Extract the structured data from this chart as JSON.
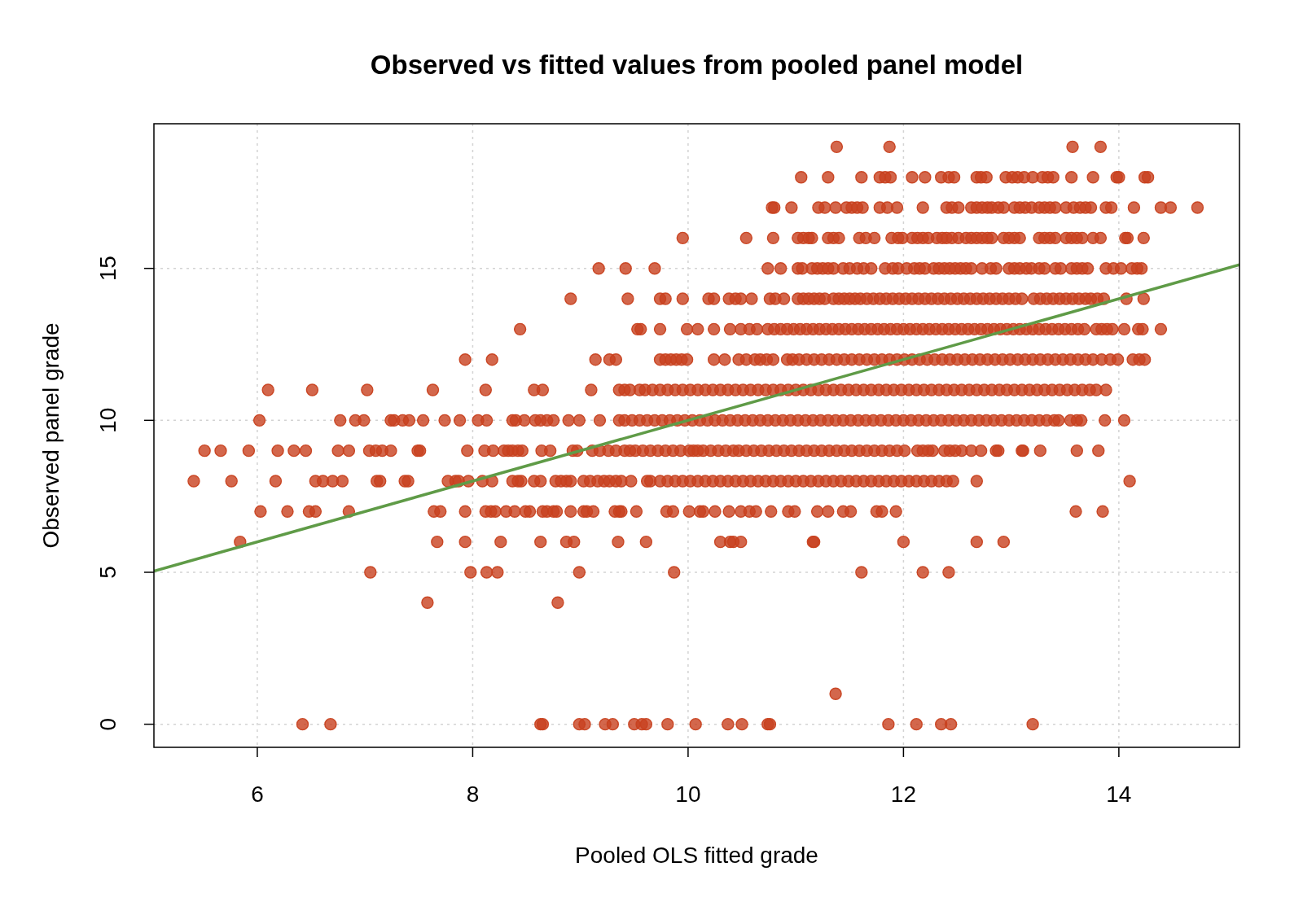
{
  "chart_data": {
    "type": "scatter",
    "title": "Observed vs fitted values from pooled panel model",
    "xlabel": "Pooled OLS fitted grade",
    "ylabel": "Observed panel grade",
    "xlim": [
      5.04,
      15.12
    ],
    "ylim": [
      -0.76,
      19.76
    ],
    "xticks": [
      6,
      8,
      10,
      12,
      14
    ],
    "yticks": [
      0,
      5,
      10,
      15
    ],
    "grid": true,
    "marker": "circle",
    "series": [
      {
        "color": "#c8411f",
        "x": [
          11.38,
          11.87,
          13.57,
          13.83,
          11.05,
          11.3,
          11.61,
          11.78,
          11.83,
          11.88,
          12.08,
          12.2,
          12.35,
          12.42,
          12.47,
          12.68,
          12.72,
          12.77,
          12.95,
          13.01,
          13.06,
          13.12,
          13.2,
          13.29,
          13.34,
          13.39,
          13.56,
          13.76,
          13.98,
          14.0,
          14.24,
          14.27,
          10.78,
          10.8,
          10.96,
          11.21,
          11.27,
          11.37,
          11.47,
          11.52,
          11.57,
          11.62,
          11.78,
          11.85,
          11.94,
          12.18,
          12.4,
          12.45,
          12.51,
          12.63,
          12.68,
          12.73,
          12.78,
          12.82,
          12.88,
          12.93,
          13.03,
          13.08,
          13.13,
          13.19,
          13.26,
          13.31,
          13.36,
          13.41,
          13.51,
          13.58,
          13.64,
          13.69,
          13.74,
          13.88,
          13.93,
          14.14,
          14.39,
          14.48,
          14.73,
          9.95,
          10.54,
          10.79,
          11.02,
          11.07,
          11.12,
          11.15,
          11.3,
          11.35,
          11.4,
          11.59,
          11.65,
          11.73,
          11.89,
          11.95,
          11.99,
          12.08,
          12.13,
          12.18,
          12.23,
          12.31,
          12.36,
          12.4,
          12.45,
          12.51,
          12.58,
          12.63,
          12.68,
          12.73,
          12.78,
          12.82,
          12.93,
          12.98,
          13.03,
          13.08,
          13.26,
          13.31,
          13.36,
          13.41,
          13.51,
          13.56,
          13.61,
          13.66,
          13.76,
          13.83,
          14.06,
          14.08,
          14.23,
          9.17,
          9.42,
          9.69,
          10.74,
          10.86,
          11.02,
          11.06,
          11.15,
          11.2,
          11.25,
          11.3,
          11.35,
          11.44,
          11.5,
          11.57,
          11.63,
          11.7,
          11.83,
          11.9,
          11.95,
          12.03,
          12.1,
          12.15,
          12.2,
          12.28,
          12.33,
          12.38,
          12.43,
          12.48,
          12.53,
          12.58,
          12.63,
          12.73,
          12.81,
          12.86,
          12.98,
          13.03,
          13.08,
          13.14,
          13.19,
          13.26,
          13.31,
          13.41,
          13.46,
          13.56,
          13.61,
          13.66,
          13.71,
          13.88,
          13.95,
          14.02,
          14.12,
          14.17,
          14.21,
          8.91,
          9.44,
          9.74,
          9.79,
          9.95,
          10.19,
          10.24,
          10.38,
          10.44,
          10.49,
          10.59,
          10.76,
          10.81,
          10.89,
          11.02,
          11.07,
          11.12,
          11.17,
          11.22,
          11.27,
          11.35,
          11.4,
          11.45,
          11.5,
          11.55,
          11.6,
          11.66,
          11.72,
          11.78,
          11.84,
          11.9,
          11.96,
          12.02,
          12.08,
          12.14,
          12.2,
          12.26,
          12.32,
          12.38,
          12.44,
          12.5,
          12.56,
          12.62,
          12.68,
          12.74,
          12.8,
          12.86,
          12.92,
          12.98,
          13.04,
          13.1,
          13.21,
          13.27,
          13.33,
          13.39,
          13.45,
          13.51,
          13.57,
          13.63,
          13.69,
          13.74,
          13.8,
          13.86,
          14.07,
          14.23,
          8.44,
          9.53,
          9.56,
          9.74,
          9.99,
          10.09,
          10.24,
          10.39,
          10.49,
          10.57,
          10.64,
          10.74,
          10.8,
          10.86,
          10.92,
          10.98,
          11.04,
          11.1,
          11.16,
          11.22,
          11.28,
          11.34,
          11.4,
          11.46,
          11.52,
          11.58,
          11.64,
          11.7,
          11.76,
          11.82,
          11.88,
          11.94,
          12.0,
          12.06,
          12.12,
          12.18,
          12.24,
          12.3,
          12.36,
          12.42,
          12.48,
          12.54,
          12.6,
          12.66,
          12.72,
          12.78,
          12.84,
          12.9,
          12.96,
          13.02,
          13.08,
          13.14,
          13.2,
          13.26,
          13.32,
          13.38,
          13.44,
          13.5,
          13.56,
          13.62,
          13.68,
          13.79,
          13.84,
          13.89,
          13.94,
          14.05,
          14.18,
          14.22,
          14.39,
          7.93,
          8.18,
          9.14,
          9.27,
          9.33,
          9.74,
          9.79,
          9.84,
          9.89,
          9.94,
          9.99,
          10.24,
          10.34,
          10.47,
          10.54,
          10.62,
          10.67,
          10.73,
          10.79,
          10.92,
          10.97,
          11.03,
          11.1,
          11.17,
          11.24,
          11.31,
          11.38,
          11.45,
          11.52,
          11.59,
          11.66,
          11.73,
          11.8,
          11.87,
          11.94,
          12.01,
          12.08,
          12.15,
          12.22,
          12.29,
          12.36,
          12.43,
          12.5,
          12.57,
          12.64,
          12.71,
          12.78,
          12.85,
          12.92,
          12.99,
          13.06,
          13.13,
          13.2,
          13.27,
          13.34,
          13.41,
          13.48,
          13.55,
          13.62,
          13.69,
          13.76,
          13.84,
          13.92,
          13.99,
          14.13,
          14.19,
          14.24,
          6.1,
          6.51,
          7.02,
          7.63,
          8.12,
          8.57,
          8.65,
          9.1,
          9.36,
          9.41,
          9.46,
          9.55,
          9.6,
          9.67,
          9.74,
          9.81,
          9.88,
          9.95,
          10.02,
          10.09,
          10.16,
          10.23,
          10.3,
          10.37,
          10.44,
          10.51,
          10.58,
          10.65,
          10.72,
          10.79,
          10.86,
          10.93,
          11.0,
          11.07,
          11.14,
          11.21,
          11.28,
          11.35,
          11.42,
          11.49,
          11.56,
          11.63,
          11.7,
          11.77,
          11.84,
          11.91,
          11.98,
          12.05,
          12.12,
          12.19,
          12.26,
          12.33,
          12.4,
          12.47,
          12.54,
          12.61,
          12.68,
          12.75,
          12.82,
          12.89,
          12.96,
          13.03,
          13.1,
          13.17,
          13.24,
          13.31,
          13.38,
          13.45,
          13.52,
          13.59,
          13.66,
          13.73,
          13.79,
          13.88,
          6.02,
          6.77,
          6.91,
          6.99,
          7.24,
          7.27,
          7.35,
          7.41,
          7.54,
          7.74,
          7.88,
          8.05,
          8.13,
          8.37,
          8.4,
          8.48,
          8.58,
          8.63,
          8.69,
          8.75,
          8.89,
          8.99,
          9.18,
          9.36,
          9.41,
          9.48,
          9.55,
          9.62,
          9.69,
          9.76,
          9.83,
          9.9,
          9.97,
          10.04,
          10.11,
          10.18,
          10.25,
          10.32,
          10.39,
          10.46,
          10.53,
          10.6,
          10.67,
          10.74,
          10.81,
          10.88,
          10.95,
          11.02,
          11.09,
          11.16,
          11.23,
          11.3,
          11.37,
          11.44,
          11.51,
          11.58,
          11.65,
          11.72,
          11.79,
          11.86,
          11.93,
          12.0,
          12.07,
          12.14,
          12.21,
          12.28,
          12.35,
          12.42,
          12.49,
          12.56,
          12.63,
          12.7,
          12.77,
          12.84,
          12.91,
          12.98,
          13.05,
          13.12,
          13.19,
          13.26,
          13.33,
          13.4,
          13.44,
          13.55,
          13.61,
          13.65,
          13.87,
          14.05,
          5.51,
          5.66,
          5.92,
          6.19,
          6.34,
          6.45,
          6.75,
          6.85,
          7.04,
          7.1,
          7.16,
          7.24,
          7.49,
          7.51,
          7.95,
          8.11,
          8.19,
          8.29,
          8.33,
          8.37,
          8.42,
          8.46,
          8.64,
          8.72,
          8.93,
          8.97,
          9.11,
          9.18,
          9.26,
          9.33,
          9.41,
          9.46,
          9.51,
          9.58,
          9.65,
          9.72,
          9.79,
          9.86,
          9.93,
          10.01,
          10.05,
          10.09,
          10.14,
          10.21,
          10.28,
          10.35,
          10.42,
          10.47,
          10.54,
          10.61,
          10.68,
          10.75,
          10.82,
          10.89,
          10.96,
          11.03,
          11.1,
          11.17,
          11.24,
          11.31,
          11.38,
          11.45,
          11.52,
          11.59,
          11.66,
          11.73,
          11.8,
          11.87,
          11.94,
          12.01,
          12.13,
          12.18,
          12.23,
          12.27,
          12.38,
          12.43,
          12.48,
          12.54,
          12.63,
          12.72,
          12.86,
          12.88,
          13.1,
          13.11,
          13.27,
          13.61,
          13.81,
          5.41,
          5.76,
          6.17,
          6.54,
          6.61,
          6.7,
          6.79,
          7.11,
          7.14,
          7.37,
          7.4,
          7.77,
          7.84,
          7.87,
          7.96,
          8.09,
          8.18,
          8.37,
          8.42,
          8.45,
          8.57,
          8.63,
          8.77,
          8.82,
          8.87,
          8.91,
          9.03,
          9.09,
          9.16,
          9.22,
          9.27,
          9.33,
          9.38,
          9.47,
          9.62,
          9.65,
          9.74,
          9.81,
          9.88,
          9.95,
          10.02,
          10.09,
          10.16,
          10.23,
          10.3,
          10.37,
          10.44,
          10.51,
          10.58,
          10.65,
          10.72,
          10.79,
          10.86,
          10.93,
          11.0,
          11.07,
          11.14,
          11.21,
          11.28,
          11.35,
          11.42,
          11.49,
          11.56,
          11.63,
          11.7,
          11.77,
          11.84,
          11.91,
          11.98,
          12.05,
          12.12,
          12.19,
          12.26,
          12.33,
          12.4,
          12.46,
          12.68,
          14.1,
          6.03,
          6.28,
          6.48,
          6.54,
          6.85,
          7.64,
          7.7,
          7.93,
          8.12,
          8.17,
          8.21,
          8.31,
          8.39,
          8.49,
          8.53,
          8.65,
          8.69,
          8.75,
          8.78,
          8.91,
          9.03,
          9.06,
          9.12,
          9.32,
          9.36,
          9.38,
          9.52,
          9.8,
          9.86,
          10.01,
          10.11,
          10.14,
          10.25,
          10.38,
          10.49,
          10.57,
          10.63,
          10.77,
          10.93,
          10.99,
          11.2,
          11.3,
          11.44,
          11.51,
          11.75,
          11.8,
          11.93,
          13.6,
          13.85,
          5.84,
          7.67,
          7.93,
          8.26,
          8.63,
          8.87,
          8.94,
          9.35,
          9.61,
          10.3,
          10.39,
          10.42,
          10.49,
          11.16,
          11.17,
          12.0,
          12.68,
          12.93,
          7.05,
          7.98,
          8.13,
          8.23,
          8.99,
          9.87,
          11.61,
          12.18,
          12.42,
          7.58,
          8.79,
          11.37,
          6.42,
          6.68,
          8.63,
          8.65,
          8.99,
          9.04,
          9.23,
          9.3,
          9.5,
          9.57,
          9.61,
          9.81,
          10.07,
          10.37,
          10.5,
          10.74,
          10.76,
          11.86,
          12.12,
          12.35,
          12.44,
          13.2
        ],
        "values": [
          19,
          19,
          19,
          19,
          18,
          18,
          18,
          18,
          18,
          18,
          18,
          18,
          18,
          18,
          18,
          18,
          18,
          18,
          18,
          18,
          18,
          18,
          18,
          18,
          18,
          18,
          18,
          18,
          18,
          18,
          18,
          18,
          17,
          17,
          17,
          17,
          17,
          17,
          17,
          17,
          17,
          17,
          17,
          17,
          17,
          17,
          17,
          17,
          17,
          17,
          17,
          17,
          17,
          17,
          17,
          17,
          17,
          17,
          17,
          17,
          17,
          17,
          17,
          17,
          17,
          17,
          17,
          17,
          17,
          17,
          17,
          17,
          17,
          17,
          17,
          16,
          16,
          16,
          16,
          16,
          16,
          16,
          16,
          16,
          16,
          16,
          16,
          16,
          16,
          16,
          16,
          16,
          16,
          16,
          16,
          16,
          16,
          16,
          16,
          16,
          16,
          16,
          16,
          16,
          16,
          16,
          16,
          16,
          16,
          16,
          16,
          16,
          16,
          16,
          16,
          16,
          16,
          16,
          16,
          16,
          16,
          16,
          16,
          15,
          15,
          15,
          15,
          15,
          15,
          15,
          15,
          15,
          15,
          15,
          15,
          15,
          15,
          15,
          15,
          15,
          15,
          15,
          15,
          15,
          15,
          15,
          15,
          15,
          15,
          15,
          15,
          15,
          15,
          15,
          15,
          15,
          15,
          15,
          15,
          15,
          15,
          15,
          15,
          15,
          15,
          15,
          15,
          15,
          15,
          15,
          15,
          15,
          15,
          15,
          15,
          15,
          15,
          14,
          14,
          14,
          14,
          14,
          14,
          14,
          14,
          14,
          14,
          14,
          14,
          14,
          14,
          14,
          14,
          14,
          14,
          14,
          14,
          14,
          14,
          14,
          14,
          14,
          14,
          14,
          14,
          14,
          14,
          14,
          14,
          14,
          14,
          14,
          14,
          14,
          14,
          14,
          14,
          14,
          14,
          14,
          14,
          14,
          14,
          14,
          14,
          14,
          14,
          14,
          14,
          14,
          14,
          14,
          14,
          14,
          14,
          14,
          14,
          14,
          14,
          14,
          14,
          14,
          13,
          13,
          13,
          13,
          13,
          13,
          13,
          13,
          13,
          13,
          13,
          13,
          13,
          13,
          13,
          13,
          13,
          13,
          13,
          13,
          13,
          13,
          13,
          13,
          13,
          13,
          13,
          13,
          13,
          13,
          13,
          13,
          13,
          13,
          13,
          13,
          13,
          13,
          13,
          13,
          13,
          13,
          13,
          13,
          13,
          13,
          13,
          13,
          13,
          13,
          13,
          13,
          13,
          13,
          13,
          13,
          13,
          13,
          13,
          13,
          13,
          13,
          13,
          13,
          13,
          13,
          13,
          13,
          13,
          12,
          12,
          12,
          12,
          12,
          12,
          12,
          12,
          12,
          12,
          12,
          12,
          12,
          12,
          12,
          12,
          12,
          12,
          12,
          12,
          12,
          12,
          12,
          12,
          12,
          12,
          12,
          12,
          12,
          12,
          12,
          12,
          12,
          12,
          12,
          12,
          12,
          12,
          12,
          12,
          12,
          12,
          12,
          12,
          12,
          12,
          12,
          12,
          12,
          12,
          12,
          12,
          12,
          12,
          12,
          12,
          12,
          12,
          12,
          12,
          12,
          12,
          12,
          12,
          12,
          12,
          12,
          11,
          11,
          11,
          11,
          11,
          11,
          11,
          11,
          11,
          11,
          11,
          11,
          11,
          11,
          11,
          11,
          11,
          11,
          11,
          11,
          11,
          11,
          11,
          11,
          11,
          11,
          11,
          11,
          11,
          11,
          11,
          11,
          11,
          11,
          11,
          11,
          11,
          11,
          11,
          11,
          11,
          11,
          11,
          11,
          11,
          11,
          11,
          11,
          11,
          11,
          11,
          11,
          11,
          11,
          11,
          11,
          11,
          11,
          11,
          11,
          11,
          11,
          11,
          11,
          11,
          11,
          11,
          11,
          11,
          11,
          11,
          11,
          11,
          11,
          10,
          10,
          10,
          10,
          10,
          10,
          10,
          10,
          10,
          10,
          10,
          10,
          10,
          10,
          10,
          10,
          10,
          10,
          10,
          10,
          10,
          10,
          10,
          10,
          10,
          10,
          10,
          10,
          10,
          10,
          10,
          10,
          10,
          10,
          10,
          10,
          10,
          10,
          10,
          10,
          10,
          10,
          10,
          10,
          10,
          10,
          10,
          10,
          10,
          10,
          10,
          10,
          10,
          10,
          10,
          10,
          10,
          10,
          10,
          10,
          10,
          10,
          10,
          10,
          10,
          10,
          10,
          10,
          10,
          10,
          10,
          10,
          10,
          10,
          10,
          10,
          10,
          10,
          10,
          10,
          10,
          10,
          10,
          10,
          10,
          10,
          10,
          10,
          9,
          9,
          9,
          9,
          9,
          9,
          9,
          9,
          9,
          9,
          9,
          9,
          9,
          9,
          9,
          9,
          9,
          9,
          9,
          9,
          9,
          9,
          9,
          9,
          9,
          9,
          9,
          9,
          9,
          9,
          9,
          9,
          9,
          9,
          9,
          9,
          9,
          9,
          9,
          9,
          9,
          9,
          9,
          9,
          9,
          9,
          9,
          9,
          9,
          9,
          9,
          9,
          9,
          9,
          9,
          9,
          9,
          9,
          9,
          9,
          9,
          9,
          9,
          9,
          9,
          9,
          9,
          9,
          9,
          9,
          9,
          9,
          9,
          9,
          9,
          9,
          9,
          9,
          9,
          9,
          9,
          9,
          9,
          9,
          9,
          9,
          9,
          8,
          8,
          8,
          8,
          8,
          8,
          8,
          8,
          8,
          8,
          8,
          8,
          8,
          8,
          8,
          8,
          8,
          8,
          8,
          8,
          8,
          8,
          8,
          8,
          8,
          8,
          8,
          8,
          8,
          8,
          8,
          8,
          8,
          8,
          8,
          8,
          8,
          8,
          8,
          8,
          8,
          8,
          8,
          8,
          8,
          8,
          8,
          8,
          8,
          8,
          8,
          8,
          8,
          8,
          8,
          8,
          8,
          8,
          8,
          8,
          8,
          8,
          8,
          8,
          8,
          8,
          8,
          8,
          8,
          8,
          8,
          8,
          8,
          8,
          8,
          8,
          8,
          8,
          7,
          7,
          7,
          7,
          7,
          7,
          7,
          7,
          7,
          7,
          7,
          7,
          7,
          7,
          7,
          7,
          7,
          7,
          7,
          7,
          7,
          7,
          7,
          7,
          7,
          7,
          7,
          7,
          7,
          7,
          7,
          7,
          7,
          7,
          7,
          7,
          7,
          7,
          7,
          7,
          7,
          7,
          7,
          7,
          7,
          7,
          7,
          7,
          7,
          6,
          6,
          6,
          6,
          6,
          6,
          6,
          6,
          6,
          6,
          6,
          6,
          6,
          6,
          6,
          6,
          6,
          6,
          5,
          5,
          5,
          5,
          5,
          5,
          5,
          5,
          5,
          4,
          4,
          1,
          0,
          0,
          0,
          0,
          0,
          0,
          0,
          0,
          0,
          0,
          0,
          0,
          0,
          0,
          0,
          0,
          0,
          0,
          0,
          0,
          0,
          0
        ]
      },
      {
        "type": "line",
        "color": "#5f9b47",
        "marker": "none",
        "line_style": "solid",
        "x": [
          5.04,
          15.12
        ],
        "values": [
          5.04,
          15.12
        ]
      }
    ]
  }
}
